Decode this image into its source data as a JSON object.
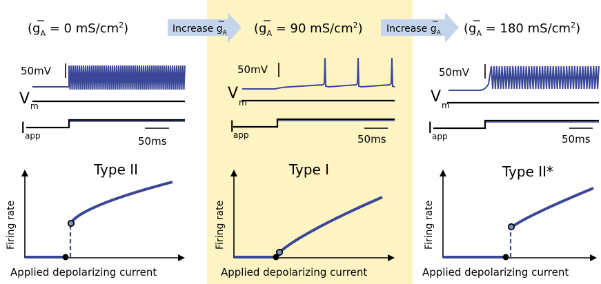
{
  "colors": {
    "trace": "#3a4796",
    "black": "#000000",
    "highlight_bg": "#fdf3c3",
    "arrow_fill": "#c4d4ea",
    "marker_fill": "#7f8fc6"
  },
  "header": {
    "open_paren": "(",
    "g_symbol": "g",
    "g_bar": "‾",
    "g_subscript": "A",
    "equals": " = ",
    "unit_base": " mS/cm",
    "unit_exp": "2",
    "close_paren": ")",
    "conditions": [
      {
        "value": "0"
      },
      {
        "value": "90"
      },
      {
        "value": "180"
      }
    ],
    "arrows": [
      {
        "label": "Increase ",
        "g_symbol": "g",
        "g_subscript": "A"
      },
      {
        "label": "Increase ",
        "g_symbol": "g",
        "g_subscript": "A"
      }
    ]
  },
  "panels": [
    {
      "scalebar_voltage": "50mV",
      "scalebar_time": "50ms",
      "vm_label": "V",
      "vm_sub": "m",
      "iapp_label": "I",
      "iapp_sub": "app",
      "plot_title": "Type II",
      "ylabel": "Firing rate",
      "xlabel": "Applied depolarizing current",
      "highlighted": false,
      "spiking": "tonic-dense"
    },
    {
      "scalebar_voltage": "50mV",
      "scalebar_time": "50ms",
      "vm_label": "V",
      "vm_sub": "m",
      "iapp_label": "I",
      "iapp_sub": "app",
      "plot_title": "Type I",
      "ylabel": "Firing rate",
      "xlabel": "Applied depolarizing current",
      "highlighted": true,
      "spiking": "sparse"
    },
    {
      "scalebar_voltage": "50mV",
      "scalebar_time": "50ms",
      "vm_label": "V",
      "vm_sub": "m",
      "iapp_label": "I",
      "iapp_sub": "app",
      "plot_title": "Type II*",
      "ylabel": "Firing rate",
      "xlabel": "Applied depolarizing current",
      "highlighted": false,
      "spiking": "tonic-dense"
    }
  ]
}
